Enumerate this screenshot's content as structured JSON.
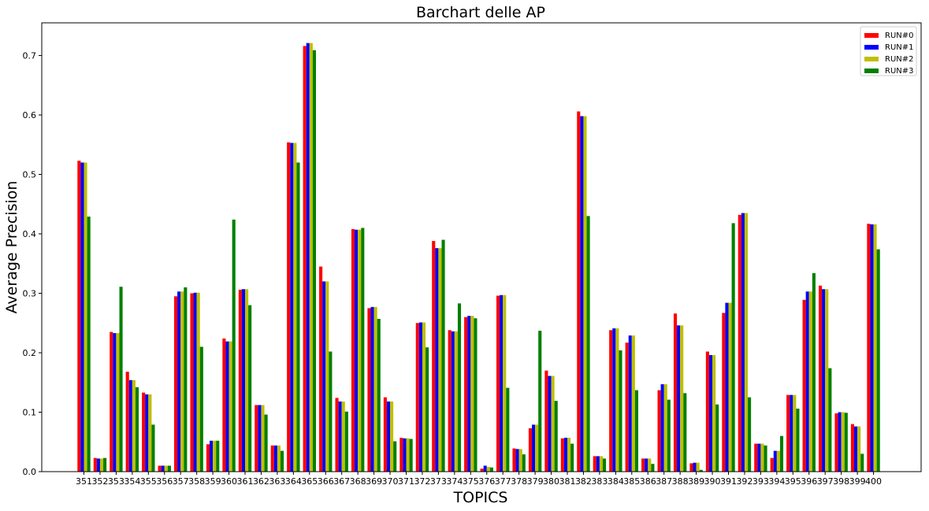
{
  "chart_data": {
    "type": "bar",
    "title": "Barchart delle AP",
    "xlabel": "TOPICS",
    "ylabel": "Average Precision",
    "ylim": [
      0,
      0.755
    ],
    "yticks": [
      "0.0",
      "0.1",
      "0.2",
      "0.3",
      "0.4",
      "0.5",
      "0.6",
      "0.7"
    ],
    "legend_position": "top-right",
    "grid": false,
    "categories": [
      "351",
      "352",
      "353",
      "354",
      "355",
      "356",
      "357",
      "358",
      "359",
      "360",
      "361",
      "362",
      "363",
      "364",
      "365",
      "366",
      "367",
      "368",
      "369",
      "370",
      "371",
      "372",
      "373",
      "374",
      "375",
      "376",
      "377",
      "378",
      "379",
      "380",
      "381",
      "382",
      "383",
      "384",
      "385",
      "386",
      "387",
      "388",
      "389",
      "390",
      "391",
      "392",
      "393",
      "394",
      "395",
      "396",
      "397",
      "398",
      "399",
      "400"
    ],
    "series": [
      {
        "name": "RUN#0",
        "color": "#ff0000",
        "values": [
          0.523,
          0.023,
          0.235,
          0.168,
          0.133,
          0.01,
          0.295,
          0.3,
          0.046,
          0.224,
          0.306,
          0.112,
          0.044,
          0.554,
          0.716,
          0.345,
          0.124,
          0.408,
          0.275,
          0.125,
          0.057,
          0.25,
          0.388,
          0.238,
          0.26,
          0.005,
          0.296,
          0.039,
          0.073,
          0.17,
          0.056,
          0.606,
          0.026,
          0.238,
          0.217,
          0.022,
          0.137,
          0.266,
          0.014,
          0.202,
          0.267,
          0.432,
          0.047,
          0.023,
          0.129,
          0.289,
          0.313,
          0.098,
          0.08,
          0.417
        ]
      },
      {
        "name": "RUN#1",
        "color": "#0000ff",
        "values": [
          0.52,
          0.022,
          0.233,
          0.154,
          0.13,
          0.01,
          0.303,
          0.301,
          0.052,
          0.219,
          0.307,
          0.112,
          0.044,
          0.553,
          0.721,
          0.32,
          0.118,
          0.407,
          0.277,
          0.118,
          0.056,
          0.251,
          0.376,
          0.236,
          0.262,
          0.01,
          0.297,
          0.038,
          0.079,
          0.161,
          0.057,
          0.598,
          0.026,
          0.241,
          0.229,
          0.022,
          0.147,
          0.246,
          0.015,
          0.196,
          0.284,
          0.435,
          0.047,
          0.035,
          0.129,
          0.303,
          0.307,
          0.1,
          0.076,
          0.416
        ]
      },
      {
        "name": "RUN#2",
        "color": "#bfbf00",
        "values": [
          0.52,
          0.022,
          0.233,
          0.154,
          0.13,
          0.01,
          0.303,
          0.301,
          0.052,
          0.219,
          0.307,
          0.112,
          0.044,
          0.553,
          0.721,
          0.32,
          0.118,
          0.407,
          0.277,
          0.118,
          0.056,
          0.251,
          0.376,
          0.236,
          0.262,
          0.008,
          0.297,
          0.038,
          0.079,
          0.161,
          0.057,
          0.598,
          0.026,
          0.241,
          0.229,
          0.022,
          0.147,
          0.246,
          0.015,
          0.196,
          0.284,
          0.435,
          0.047,
          0.035,
          0.129,
          0.303,
          0.307,
          0.1,
          0.076,
          0.416
        ]
      },
      {
        "name": "RUN#3",
        "color": "#008000",
        "values": [
          0.429,
          0.023,
          0.311,
          0.142,
          0.079,
          0.01,
          0.31,
          0.21,
          0.052,
          0.424,
          0.28,
          0.096,
          0.035,
          0.52,
          0.709,
          0.202,
          0.101,
          0.41,
          0.257,
          0.051,
          0.055,
          0.209,
          0.39,
          0.283,
          0.258,
          0.007,
          0.141,
          0.029,
          0.237,
          0.119,
          0.047,
          0.43,
          0.022,
          0.204,
          0.137,
          0.013,
          0.121,
          0.132,
          0.003,
          0.113,
          0.418,
          0.125,
          0.044,
          0.06,
          0.106,
          0.334,
          0.174,
          0.099,
          0.03,
          0.374
        ]
      }
    ]
  }
}
